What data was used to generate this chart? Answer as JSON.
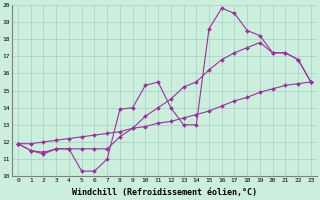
{
  "xlabel": "Windchill (Refroidissement éolien,°C)",
  "background_color": "#cceedd",
  "line_color": "#993399",
  "grid_color": "#aacccc",
  "x_data": [
    0,
    1,
    2,
    3,
    4,
    5,
    6,
    7,
    8,
    9,
    10,
    11,
    12,
    13,
    14,
    15,
    16,
    17,
    18,
    19,
    20,
    21,
    22,
    23
  ],
  "series1": [
    11.9,
    11.5,
    11.3,
    11.6,
    11.6,
    10.3,
    10.3,
    11.0,
    13.9,
    14.0,
    15.3,
    15.5,
    14.0,
    13.0,
    13.0,
    18.6,
    19.8,
    19.5,
    18.5,
    18.2,
    17.2,
    17.2,
    16.8,
    15.5
  ],
  "series2": [
    11.9,
    11.5,
    11.4,
    11.6,
    11.6,
    11.6,
    11.6,
    11.6,
    12.3,
    12.8,
    13.5,
    14.0,
    14.5,
    15.2,
    15.5,
    16.2,
    16.8,
    17.2,
    17.5,
    17.8,
    17.2,
    17.2,
    16.8,
    15.5
  ],
  "series3": [
    11.9,
    11.9,
    12.0,
    12.1,
    12.2,
    12.3,
    12.4,
    12.5,
    12.6,
    12.8,
    12.9,
    13.1,
    13.2,
    13.4,
    13.6,
    13.8,
    14.1,
    14.4,
    14.6,
    14.9,
    15.1,
    15.3,
    15.4,
    15.5
  ],
  "ylim": [
    10,
    20
  ],
  "xlim_min": -0.5,
  "xlim_max": 23.5,
  "yticks": [
    10,
    11,
    12,
    13,
    14,
    15,
    16,
    17,
    18,
    19,
    20
  ],
  "xticks": [
    0,
    1,
    2,
    3,
    4,
    5,
    6,
    7,
    8,
    9,
    10,
    11,
    12,
    13,
    14,
    15,
    16,
    17,
    18,
    19,
    20,
    21,
    22,
    23
  ],
  "tick_fontsize": 4.5,
  "xlabel_fontsize": 6.0,
  "markersize": 2.0,
  "linewidth": 0.8
}
